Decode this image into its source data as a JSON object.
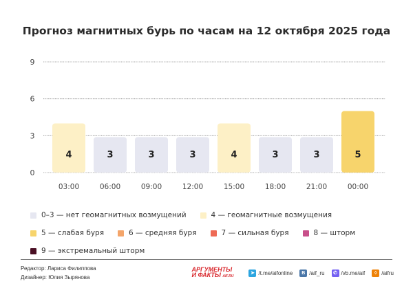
{
  "title": "Прогноз магнитных бурь по часам на 12 октября 2025 года",
  "chart_data": {
    "type": "bar",
    "title": "Прогноз магнитных бурь по часам на 12 октября 2025 года",
    "categories": [
      "03:00",
      "06:00",
      "09:00",
      "12:00",
      "15:00",
      "18:00",
      "21:00",
      "00:00"
    ],
    "values": [
      4,
      3,
      3,
      3,
      4,
      3,
      3,
      5
    ],
    "yticks": [
      "0",
      "3",
      "6",
      "9"
    ],
    "ylim": [
      0,
      9
    ],
    "grid": true,
    "xlabel": "",
    "ylabel": ""
  },
  "legend": [
    {
      "label": "0–3 — нет геомагнитных возмущений",
      "color": "#e6e7f1"
    },
    {
      "label": "4 — геомагнитные возмущения",
      "color": "#fdf0c6"
    },
    {
      "label": "5 — слабая буря",
      "color": "#f7d46c"
    },
    {
      "label": "6 — средняя буря",
      "color": "#f4a56a"
    },
    {
      "label": "7 — сильная буря",
      "color": "#ee6a55"
    },
    {
      "label": "8 — шторм",
      "color": "#c8508a"
    },
    {
      "label": "9 — экстремальный шторм",
      "color": "#4a0f24"
    }
  ],
  "credits": {
    "editor": "Редактор: Лариса Филиппова",
    "designer": "Дизайнер: Юлия Зырянова"
  },
  "footer": {
    "logo": "АРГУМЕНТЫ И ФАКТЫ AIF.RU",
    "logo_line1": "АРГУМЕНТЫ",
    "logo_line2": "И ФАКТЫ",
    "logo_site": "AIF.RU",
    "links": [
      {
        "icon": "telegram-icon",
        "text": "/t.me/aifonline",
        "color": "#2ca5e0"
      },
      {
        "icon": "vk-icon",
        "text": "/aif_ru",
        "color": "#4a76a8"
      },
      {
        "icon": "viber-icon",
        "text": "/vb.me/aif",
        "color": "#7360f2"
      },
      {
        "icon": "ok-icon",
        "text": "/aifru",
        "color": "#ee8208"
      }
    ]
  }
}
